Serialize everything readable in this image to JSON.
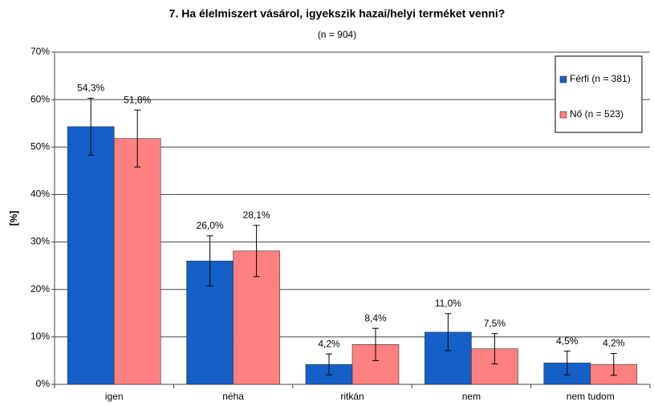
{
  "chart_data": {
    "type": "bar",
    "title": "7. Ha élelmiszert vásárol, igyekszik hazai/helyi terméket venni?",
    "subtitle": "(n = 904)",
    "y_label": "[%]",
    "categories": [
      "igen",
      "néha",
      "ritkán",
      "nem",
      "nem tudom"
    ],
    "series": [
      {
        "name": "Férfi (n = 381)",
        "color": "#1460c8",
        "values": [
          54.3,
          26.0,
          4.2,
          11.0,
          4.5
        ],
        "value_labels": [
          "54,3%",
          "26,0%",
          "4,2%",
          "11,0%",
          "4,5%"
        ],
        "errors": [
          6.0,
          5.3,
          2.2,
          3.9,
          2.5
        ]
      },
      {
        "name": "Nő (n = 523)",
        "color": "#ff8080",
        "values": [
          51.8,
          28.1,
          8.4,
          7.5,
          4.2
        ],
        "value_labels": [
          "51,8%",
          "28,1%",
          "8,4%",
          "7,5%",
          "4,2%"
        ],
        "errors": [
          6.0,
          5.4,
          3.4,
          3.2,
          2.3
        ]
      }
    ],
    "ylim": [
      0,
      70
    ],
    "yticks": [
      {
        "value": 0,
        "label": "0%"
      },
      {
        "value": 10,
        "label": "10%"
      },
      {
        "value": 20,
        "label": "20%"
      },
      {
        "value": 30,
        "label": "30%"
      },
      {
        "value": 40,
        "label": "40%"
      },
      {
        "value": 50,
        "label": "50%"
      },
      {
        "value": 60,
        "label": "60%"
      },
      {
        "value": 70,
        "label": "70%"
      }
    ],
    "grid": true,
    "legend": "top-right"
  }
}
